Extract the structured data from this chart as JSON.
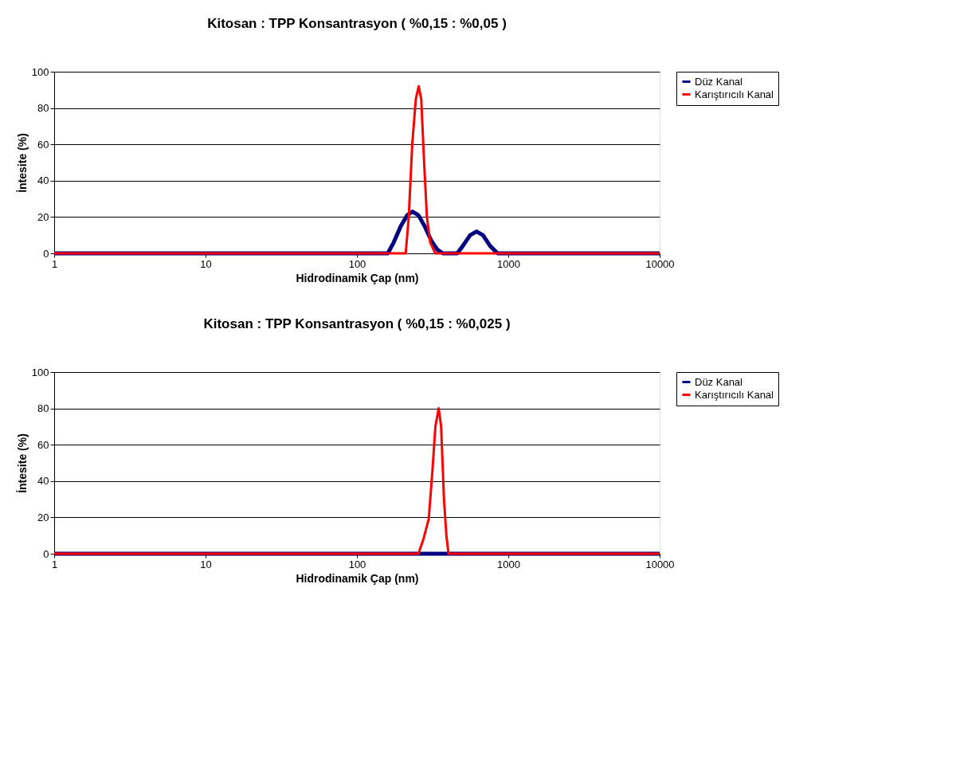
{
  "chart_data": [
    {
      "type": "line",
      "title": "Kitosan : TPP Konsantrasyon ( %0,15 : %0,05 )",
      "xlabel": "Hidrodinamik Çap (nm)",
      "ylabel": "İntesite (%)",
      "log": "x",
      "xlim": [
        1,
        10000
      ],
      "xticks": [
        1,
        10,
        100,
        1000,
        10000
      ],
      "ylim": [
        0,
        100
      ],
      "yticks": [
        0,
        20,
        40,
        60,
        80,
        100
      ],
      "grid": "y",
      "legend": "right",
      "marker": "none",
      "line_style": "solid",
      "series": [
        {
          "name": "Düz Kanal",
          "color": "#000080",
          "x": [
            1,
            160,
            175,
            195,
            215,
            233,
            255,
            280,
            310,
            340,
            370,
            460,
            500,
            560,
            617,
            680,
            760,
            850,
            10000
          ],
          "values": [
            0,
            0,
            6,
            15,
            21,
            23,
            21,
            15,
            7,
            2,
            0,
            0,
            4,
            10,
            12,
            10,
            4,
            0,
            0
          ]
        },
        {
          "name": "Karıştırıcılı Kanal",
          "color": "#ff0000",
          "x": [
            1,
            210,
            220,
            232,
            245,
            256,
            266,
            278,
            290,
            305,
            330,
            10000
          ],
          "values": [
            0,
            0,
            20,
            60,
            85,
            92,
            85,
            50,
            20,
            6,
            0,
            0
          ]
        }
      ]
    },
    {
      "type": "line",
      "title": "Kitosan : TPP Konsantrasyon ( %0,15 : %0,025 )",
      "xlabel": "Hidrodinamik Çap (nm)",
      "ylabel": "İntesite (%)",
      "log": "x",
      "xlim": [
        1,
        10000
      ],
      "xticks": [
        1,
        10,
        100,
        1000,
        10000
      ],
      "ylim": [
        0,
        100
      ],
      "yticks": [
        0,
        20,
        40,
        60,
        80,
        100
      ],
      "grid": "y",
      "legend": "right",
      "marker": "none",
      "line_style": "solid",
      "series": [
        {
          "name": "Düz Kanal",
          "color": "#000080",
          "x": [
            1,
            10000
          ],
          "values": [
            0,
            0
          ]
        },
        {
          "name": "Karıştırıcılı Kanal",
          "color": "#ff0000",
          "x": [
            1,
            255,
            275,
            298,
            315,
            330,
            347,
            360,
            376,
            390,
            403,
            10000
          ],
          "values": [
            0,
            0,
            8,
            19,
            45,
            70,
            80,
            70,
            30,
            10,
            0,
            0
          ]
        }
      ]
    }
  ]
}
